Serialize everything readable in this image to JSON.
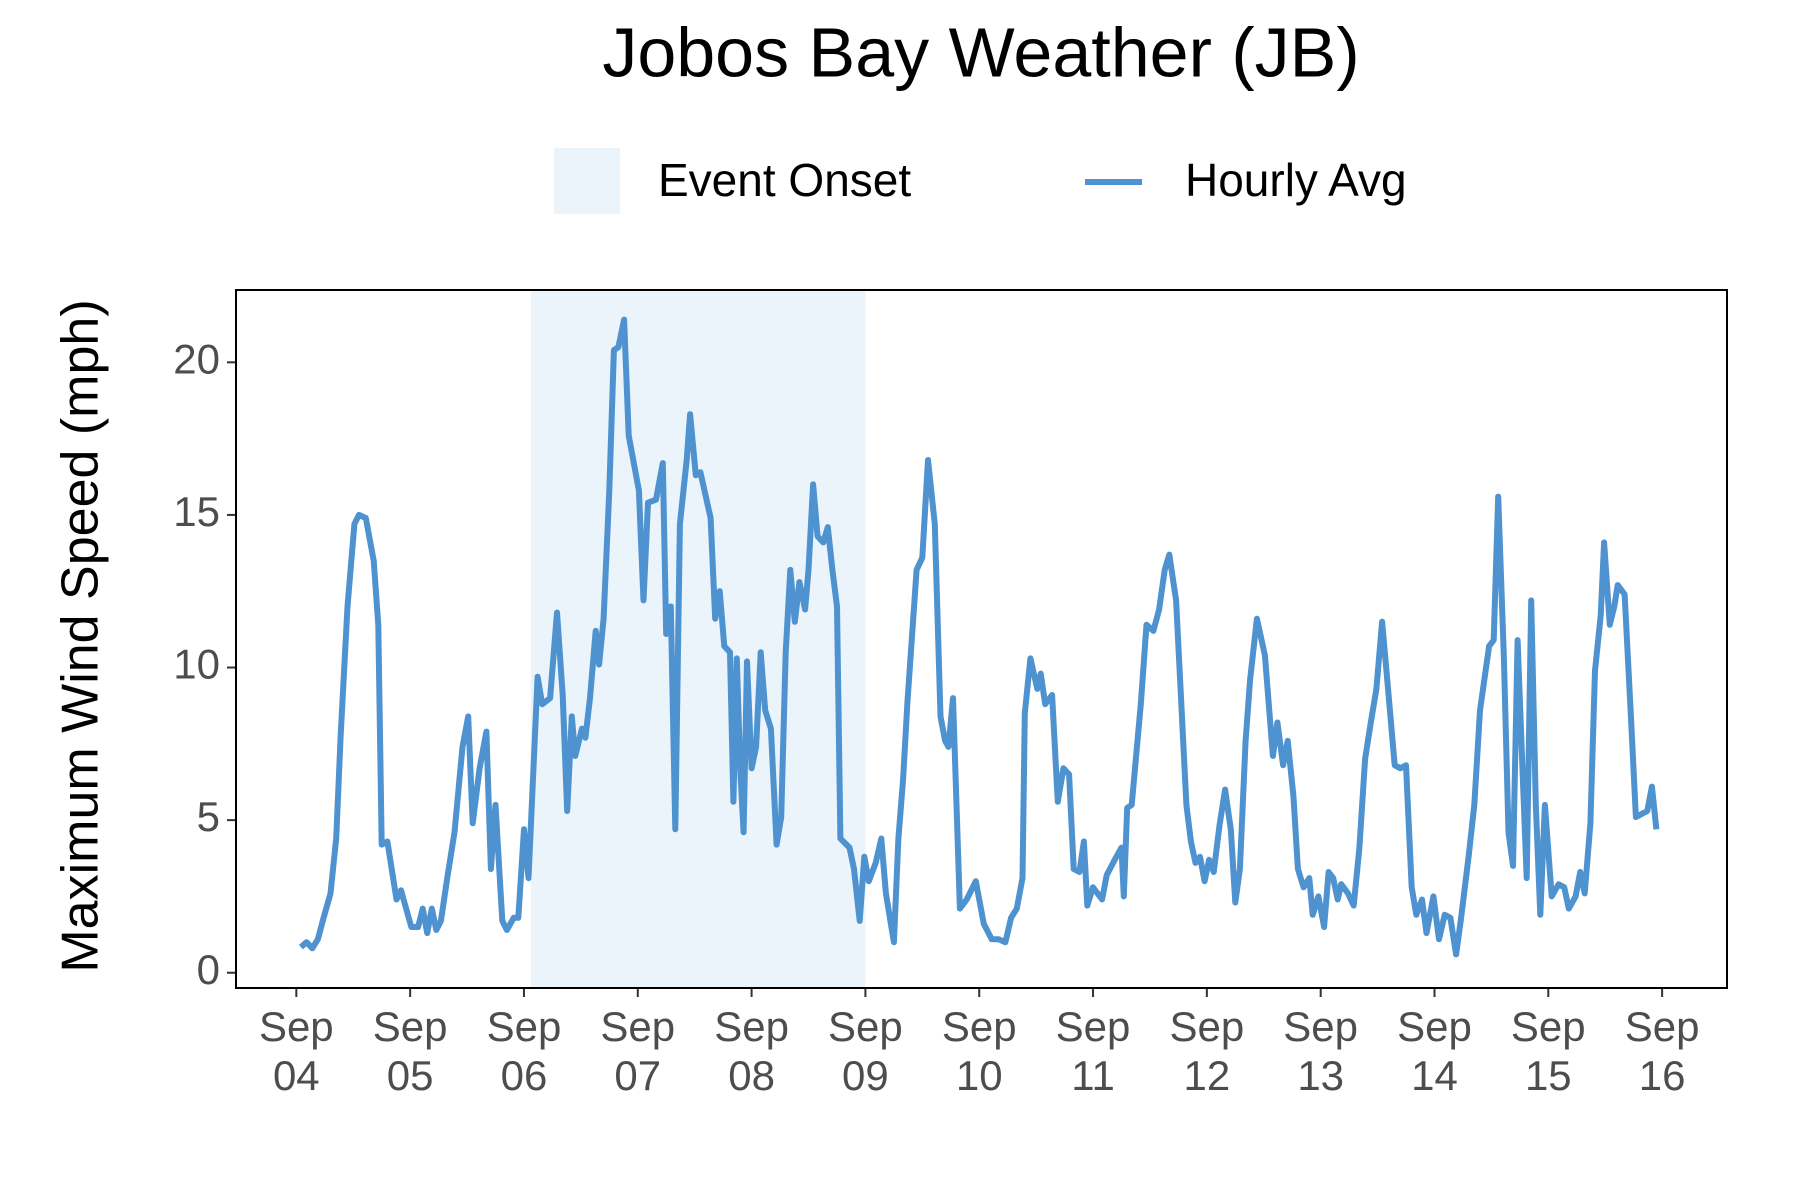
{
  "chart_data": {
    "type": "line",
    "title": "Jobos Bay Weather (JB)",
    "y_label": "Maximum Wind Speed (mph)",
    "xlim": [
      3.47,
      16.57
    ],
    "ylim": [
      -0.5,
      22.37
    ],
    "yticks": [
      0,
      5,
      10,
      15,
      20
    ],
    "xticks": [
      {
        "value": 4,
        "label": "Sep\n04"
      },
      {
        "value": 5,
        "label": "Sep\n05"
      },
      {
        "value": 6,
        "label": "Sep\n06"
      },
      {
        "value": 7,
        "label": "Sep\n07"
      },
      {
        "value": 8,
        "label": "Sep\n08"
      },
      {
        "value": 9,
        "label": "Sep\n09"
      },
      {
        "value": 10,
        "label": "Sep\n10"
      },
      {
        "value": 11,
        "label": "Sep\n11"
      },
      {
        "value": 12,
        "label": "Sep\n12"
      },
      {
        "value": 13,
        "label": "Sep\n13"
      },
      {
        "value": 14,
        "label": "Sep\n14"
      },
      {
        "value": 15,
        "label": "Sep\n15"
      },
      {
        "value": 16,
        "label": "Sep\n16"
      }
    ],
    "shade": {
      "name": "Event Onset",
      "x": [
        6.06,
        9.0
      ],
      "color": "#ebf3fb"
    },
    "legend": "top",
    "x": [
      4.04,
      4.09,
      4.14,
      4.19,
      4.24,
      4.3,
      4.35,
      4.39,
      4.45,
      4.51,
      4.55,
      4.61,
      4.68,
      4.72,
      4.75,
      4.8,
      4.88,
      4.92,
      5.01,
      5.07,
      5.11,
      5.15,
      5.19,
      5.23,
      5.27,
      5.33,
      5.39,
      5.46,
      5.51,
      5.55,
      5.61,
      5.67,
      5.71,
      5.75,
      5.81,
      5.85,
      5.91,
      5.95,
      6.0,
      6.04,
      6.12,
      6.16,
      6.23,
      6.29,
      6.34,
      6.38,
      6.42,
      6.45,
      6.51,
      6.54,
      6.58,
      6.63,
      6.66,
      6.7,
      6.75,
      6.79,
      6.83,
      6.88,
      6.92,
      7.01,
      7.05,
      7.09,
      7.16,
      7.22,
      7.25,
      7.29,
      7.33,
      7.37,
      7.43,
      7.46,
      7.51,
      7.55,
      7.64,
      7.68,
      7.72,
      7.76,
      7.81,
      7.84,
      7.87,
      7.9,
      7.93,
      7.96,
      8.0,
      8.04,
      8.08,
      8.12,
      8.17,
      8.22,
      8.26,
      8.3,
      8.34,
      8.38,
      8.42,
      8.47,
      8.5,
      8.54,
      8.58,
      8.63,
      8.67,
      8.71,
      8.75,
      8.78,
      8.86,
      8.9,
      8.95,
      8.99,
      9.03,
      9.09,
      9.14,
      9.18,
      9.25,
      9.29,
      9.33,
      9.37,
      9.45,
      9.5,
      9.55,
      9.61,
      9.66,
      9.7,
      9.73,
      9.77,
      9.83,
      9.89,
      9.97,
      10.04,
      10.11,
      10.17,
      10.23,
      10.28,
      10.33,
      10.38,
      10.4,
      10.45,
      10.51,
      10.54,
      10.58,
      10.64,
      10.69,
      10.74,
      10.79,
      10.83,
      10.88,
      10.92,
      10.95,
      11.0,
      11.08,
      11.12,
      11.19,
      11.25,
      11.27,
      11.3,
      11.34,
      11.42,
      11.47,
      11.53,
      11.58,
      11.63,
      11.67,
      11.73,
      11.82,
      11.86,
      11.9,
      11.94,
      11.98,
      12.02,
      12.06,
      12.11,
      12.16,
      12.21,
      12.25,
      12.29,
      12.34,
      12.38,
      12.44,
      12.51,
      12.55,
      12.58,
      12.62,
      12.67,
      12.71,
      12.76,
      12.8,
      12.85,
      12.9,
      12.93,
      12.98,
      13.03,
      13.07,
      13.11,
      13.15,
      13.18,
      13.24,
      13.29,
      13.34,
      13.39,
      13.44,
      13.49,
      13.54,
      13.58,
      13.65,
      13.7,
      13.75,
      13.8,
      13.84,
      13.89,
      13.93,
      13.99,
      14.04,
      14.09,
      14.14,
      14.19,
      14.23,
      14.3,
      14.35,
      14.4,
      14.48,
      14.52,
      14.56,
      14.61,
      14.65,
      14.69,
      14.73,
      14.77,
      14.81,
      14.85,
      14.89,
      14.93,
      14.97,
      15.03,
      15.09,
      15.14,
      15.18,
      15.24,
      15.28,
      15.32,
      15.37,
      15.41,
      15.46,
      15.49,
      15.54,
      15.58,
      15.61,
      15.67,
      15.72,
      15.77,
      15.82,
      15.87,
      15.91,
      15.95
    ],
    "series": [
      {
        "name": "Hourly Avg",
        "color": "#4e92cf",
        "values": [
          0.84,
          1.0,
          0.8,
          1.1,
          1.8,
          2.6,
          4.4,
          7.8,
          12.0,
          14.7,
          15.0,
          14.9,
          13.5,
          11.4,
          4.2,
          4.3,
          2.4,
          2.7,
          1.5,
          1.5,
          2.1,
          1.3,
          2.1,
          1.4,
          1.7,
          3.2,
          4.6,
          7.4,
          8.4,
          4.9,
          6.7,
          7.9,
          3.4,
          5.5,
          1.7,
          1.4,
          1.8,
          1.8,
          4.7,
          3.1,
          9.7,
          8.8,
          9.0,
          11.8,
          9.1,
          5.3,
          8.4,
          7.1,
          8.0,
          7.7,
          9.0,
          11.2,
          10.1,
          11.6,
          15.8,
          20.4,
          20.5,
          21.4,
          17.6,
          15.8,
          12.2,
          15.4,
          15.5,
          16.7,
          11.1,
          12.0,
          4.7,
          14.7,
          16.8,
          18.3,
          16.3,
          16.4,
          14.9,
          11.6,
          12.5,
          10.7,
          10.5,
          5.6,
          10.3,
          6.7,
          4.6,
          10.2,
          6.7,
          7.4,
          10.5,
          8.6,
          8.0,
          4.2,
          5.1,
          10.5,
          13.2,
          11.5,
          12.8,
          11.9,
          13.2,
          16.0,
          14.3,
          14.1,
          14.6,
          13.2,
          12.0,
          4.4,
          4.1,
          3.4,
          1.7,
          3.8,
          3.0,
          3.6,
          4.4,
          2.6,
          1.0,
          4.4,
          6.3,
          8.9,
          13.2,
          13.6,
          16.8,
          14.7,
          8.4,
          7.6,
          7.4,
          9.0,
          2.1,
          2.4,
          3.0,
          1.6,
          1.1,
          1.1,
          1.0,
          1.8,
          2.1,
          3.1,
          8.5,
          10.3,
          9.3,
          9.8,
          8.8,
          9.1,
          5.6,
          6.7,
          6.5,
          3.4,
          3.3,
          4.3,
          2.2,
          2.8,
          2.4,
          3.2,
          3.7,
          4.1,
          2.5,
          5.4,
          5.5,
          8.8,
          11.4,
          11.2,
          11.9,
          13.2,
          13.7,
          12.2,
          5.5,
          4.3,
          3.6,
          3.8,
          3.0,
          3.7,
          3.3,
          4.8,
          6.0,
          4.7,
          2.3,
          3.4,
          7.6,
          9.6,
          11.6,
          10.4,
          8.5,
          7.1,
          8.2,
          6.8,
          7.6,
          5.8,
          3.4,
          2.8,
          3.1,
          1.9,
          2.5,
          1.5,
          3.3,
          3.1,
          2.4,
          2.9,
          2.6,
          2.2,
          4.1,
          7.0,
          8.2,
          9.3,
          11.5,
          9.8,
          6.8,
          6.7,
          6.8,
          2.8,
          1.9,
          2.4,
          1.3,
          2.5,
          1.1,
          1.9,
          1.8,
          0.6,
          1.7,
          3.8,
          5.5,
          8.6,
          10.7,
          10.9,
          15.6,
          10.3,
          4.6,
          3.5,
          10.9,
          7.0,
          3.1,
          12.2,
          5.5,
          1.9,
          5.5,
          2.5,
          2.9,
          2.8,
          2.1,
          2.5,
          3.3,
          2.6,
          4.9,
          9.9,
          11.7,
          14.1,
          11.4,
          12.0,
          12.7,
          12.4,
          8.8,
          5.1,
          5.2,
          5.3,
          6.1,
          4.7
        ]
      }
    ]
  }
}
